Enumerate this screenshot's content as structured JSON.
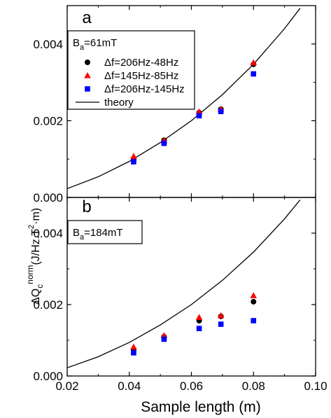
{
  "chart_data": [
    {
      "panel": "a",
      "type": "scatter",
      "xlim": [
        0.02,
        0.1
      ],
      "ylim": [
        0.0,
        0.005
      ],
      "xticks": [
        0.02,
        0.04,
        0.06,
        0.08,
        0.1
      ],
      "xtick_labels": [
        "0.02",
        "0.04",
        "0.06",
        "0.08",
        "0.10"
      ],
      "yticks": [
        0.0,
        0.002,
        0.004
      ],
      "ytick_labels": [
        "0.000",
        "0.002",
        "0.004"
      ],
      "legend_title": "B",
      "legend_title_sub": "a",
      "legend_title_value": "=61mT",
      "legend_position": "top-left",
      "series": [
        {
          "name": "Δf=206Hz-48Hz",
          "marker": "circle",
          "color": "#000000",
          "x": [
            0.0414,
            0.0512,
            0.0625,
            0.0695,
            0.08
          ],
          "y": [
            0.00098,
            0.00149,
            0.00221,
            0.0023,
            0.00347
          ]
        },
        {
          "name": "Δf=145Hz-85Hz",
          "marker": "triangle",
          "color": "#ff0000",
          "x": [
            0.0414,
            0.0512,
            0.0625,
            0.0695,
            0.08
          ],
          "y": [
            0.00107,
            0.00148,
            0.00223,
            0.0023,
            0.00351
          ]
        },
        {
          "name": "Δf=206Hz-145Hz",
          "marker": "square",
          "color": "#0000ff",
          "x": [
            0.0414,
            0.0512,
            0.0625,
            0.0695,
            0.08
          ],
          "y": [
            0.00093,
            0.00141,
            0.00213,
            0.00224,
            0.00322
          ]
        }
      ],
      "theory": {
        "name": "theory",
        "color": "#000000",
        "x": [
          0.02,
          0.03,
          0.04,
          0.05,
          0.06,
          0.07,
          0.08,
          0.09,
          0.095
        ],
        "y": [
          0.00023,
          0.00054,
          0.00094,
          0.00143,
          0.002,
          0.00268,
          0.00347,
          0.0044,
          0.00493
        ]
      }
    },
    {
      "panel": "b",
      "type": "scatter",
      "xlim": [
        0.02,
        0.1
      ],
      "ylim": [
        0.0,
        0.005
      ],
      "xticks": [
        0.02,
        0.04,
        0.06,
        0.08,
        0.1
      ],
      "xtick_labels": [
        "0.02",
        "0.04",
        "0.06",
        "0.08",
        "0.10"
      ],
      "yticks": [
        0.0,
        0.002,
        0.004
      ],
      "ytick_labels": [
        "0.000",
        "0.002",
        "0.004"
      ],
      "legend_title": "B",
      "legend_title_sub": "a",
      "legend_title_value": "=184mT",
      "series": [
        {
          "name": "Δf=206Hz-48Hz",
          "marker": "circle",
          "color": "#000000",
          "x": [
            0.0414,
            0.0512,
            0.0625,
            0.0695,
            0.08
          ],
          "y": [
            0.00074,
            0.0011,
            0.00155,
            0.00167,
            0.00208
          ]
        },
        {
          "name": "Δf=145Hz-85Hz",
          "marker": "triangle",
          "color": "#ff0000",
          "x": [
            0.0414,
            0.0512,
            0.0625,
            0.0695,
            0.08
          ],
          "y": [
            0.00081,
            0.00113,
            0.00164,
            0.00169,
            0.00225
          ]
        },
        {
          "name": "Δf=206Hz-145Hz",
          "marker": "square",
          "color": "#0000ff",
          "x": [
            0.0414,
            0.0512,
            0.0625,
            0.0695,
            0.08
          ],
          "y": [
            0.00065,
            0.00103,
            0.00133,
            0.00145,
            0.00155
          ]
        }
      ],
      "theory": {
        "name": "theory",
        "color": "#000000",
        "x": [
          0.02,
          0.03,
          0.04,
          0.05,
          0.06,
          0.07,
          0.08,
          0.09,
          0.095
        ],
        "y": [
          0.00023,
          0.00054,
          0.00094,
          0.00143,
          0.002,
          0.00268,
          0.00347,
          0.0044,
          0.00493
        ]
      }
    }
  ],
  "axes": {
    "xlabel": "Sample length (m)",
    "ylabel_base": "ΔQ",
    "ylabel_sub": "c",
    "ylabel_sup": "norm",
    "ylabel_unit_open": "(J/Hz.T",
    "ylabel_unit_sup": "2",
    "ylabel_unit_close": "·m)"
  }
}
